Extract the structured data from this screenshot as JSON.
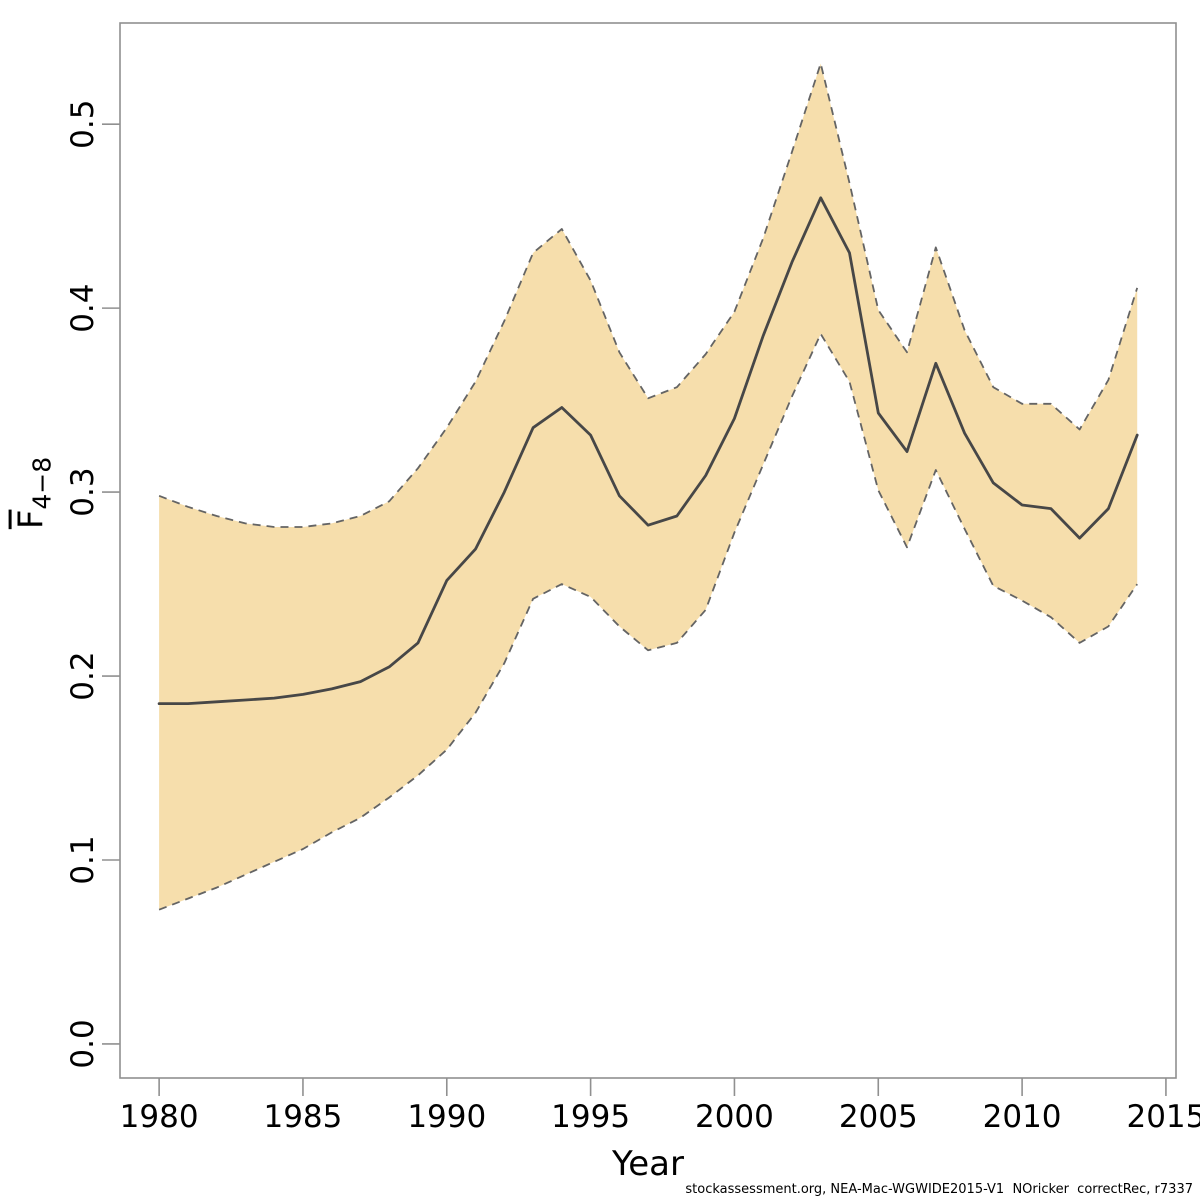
{
  "footer": {
    "text": "stockassessment.org, NEA-Mac-WGWIDE2015-V1  NOricker  correctRec, r7337"
  },
  "chart_data": {
    "type": "line",
    "title": "",
    "xlabel": "Year",
    "ylabel_base": "F",
    "ylabel_sub": "4−8",
    "x": [
      1980,
      1981,
      1982,
      1983,
      1984,
      1985,
      1986,
      1987,
      1988,
      1989,
      1990,
      1991,
      1992,
      1993,
      1994,
      1995,
      1996,
      1997,
      1998,
      1999,
      2000,
      2001,
      2002,
      2003,
      2004,
      2005,
      2006,
      2007,
      2008,
      2009,
      2010,
      2011,
      2012,
      2013,
      2014
    ],
    "series": [
      {
        "name": "mean_F4-8",
        "style": "solid",
        "values": [
          0.185,
          0.185,
          0.186,
          0.187,
          0.188,
          0.19,
          0.193,
          0.197,
          0.205,
          0.218,
          0.252,
          0.269,
          0.3,
          0.335,
          0.346,
          0.331,
          0.298,
          0.282,
          0.287,
          0.309,
          0.34,
          0.385,
          0.425,
          0.46,
          0.43,
          0.343,
          0.322,
          0.37,
          0.332,
          0.305,
          0.293,
          0.291,
          0.275,
          0.291,
          0.331
        ]
      },
      {
        "name": "lower_95ci",
        "style": "dashed",
        "values": [
          0.073,
          0.079,
          0.085,
          0.092,
          0.099,
          0.106,
          0.115,
          0.123,
          0.134,
          0.146,
          0.16,
          0.18,
          0.207,
          0.242,
          0.25,
          0.243,
          0.227,
          0.214,
          0.218,
          0.236,
          0.278,
          0.315,
          0.352,
          0.386,
          0.36,
          0.301,
          0.27,
          0.312,
          0.28,
          0.249,
          0.241,
          0.232,
          0.218,
          0.227,
          0.25
        ]
      },
      {
        "name": "upper_95ci",
        "style": "dashed",
        "values": [
          0.298,
          0.292,
          0.287,
          0.283,
          0.281,
          0.281,
          0.283,
          0.287,
          0.295,
          0.313,
          0.335,
          0.36,
          0.393,
          0.43,
          0.443,
          0.415,
          0.376,
          0.351,
          0.357,
          0.375,
          0.398,
          0.438,
          0.485,
          0.533,
          0.468,
          0.399,
          0.376,
          0.433,
          0.388,
          0.357,
          0.348,
          0.348,
          0.334,
          0.361,
          0.411
        ]
      }
    ],
    "xticks": [
      "1980",
      "1985",
      "1990",
      "1995",
      "2000",
      "2005",
      "2010",
      "2015"
    ],
    "xtick_values": [
      1980,
      1985,
      1990,
      1995,
      2000,
      2005,
      2010,
      2015
    ],
    "yticks": [
      "0.0",
      "0.1",
      "0.2",
      "0.3",
      "0.4",
      "0.5"
    ],
    "ytick_values": [
      0.0,
      0.1,
      0.2,
      0.3,
      0.4,
      0.5
    ],
    "xlim": [
      1978.64,
      2015.35
    ],
    "ylim": [
      -0.0185,
      0.555
    ],
    "grid": false,
    "legend": null,
    "colors": {
      "band_fill": "#f6deac",
      "band_border": "#646464",
      "mean_line": "#474747",
      "axis": "#909090",
      "text": "#000000"
    }
  }
}
